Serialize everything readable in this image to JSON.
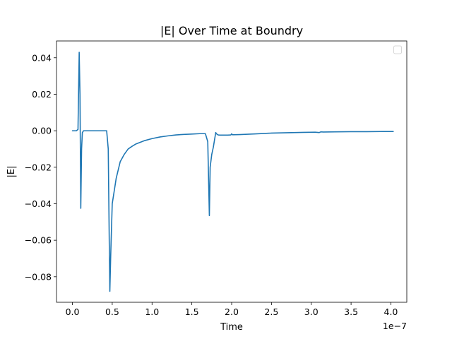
{
  "chart_data": {
    "type": "line",
    "title": "|E| Over Time at Boundry",
    "xlabel": "Time",
    "ylabel": "|E|",
    "x_offset_text": "1e−7",
    "x_scale_factor": 1e-07,
    "xlim": [
      -0.2,
      4.2
    ],
    "ylim": [
      -0.094,
      0.0492
    ],
    "grid": false,
    "legend": {
      "placement": "top-right",
      "entries": []
    },
    "x_ticks": [
      {
        "value": 0.0,
        "label": "0.0"
      },
      {
        "value": 0.5,
        "label": "0.5"
      },
      {
        "value": 1.0,
        "label": "1.0"
      },
      {
        "value": 1.5,
        "label": "1.5"
      },
      {
        "value": 2.0,
        "label": "2.0"
      },
      {
        "value": 2.5,
        "label": "2.5"
      },
      {
        "value": 3.0,
        "label": "3.0"
      },
      {
        "value": 3.5,
        "label": "3.5"
      },
      {
        "value": 4.0,
        "label": "4.0"
      }
    ],
    "y_ticks": [
      {
        "value": 0.04,
        "label": "0.04"
      },
      {
        "value": 0.02,
        "label": "0.02"
      },
      {
        "value": 0.0,
        "label": "0.00"
      },
      {
        "value": -0.02,
        "label": "−0.02"
      },
      {
        "value": -0.04,
        "label": "−0.04"
      },
      {
        "value": -0.06,
        "label": "−0.06"
      },
      {
        "value": -0.08,
        "label": "−0.08"
      }
    ],
    "series": [
      {
        "color": "#1f77b4",
        "x": [
          0.0,
          0.05,
          0.07,
          0.085,
          0.095,
          0.105,
          0.115,
          0.125,
          0.14,
          0.16,
          0.2,
          0.3,
          0.4,
          0.43,
          0.45,
          0.46,
          0.47,
          0.48,
          0.5,
          0.55,
          0.6,
          0.65,
          0.7,
          0.75,
          0.8,
          0.9,
          1.0,
          1.1,
          1.2,
          1.3,
          1.4,
          1.5,
          1.6,
          1.67,
          1.7,
          1.72,
          1.73,
          1.75,
          1.77,
          1.8,
          1.81,
          1.83,
          1.85,
          1.9,
          1.95,
          1.99,
          2.0,
          2.01,
          2.1,
          2.3,
          2.5,
          2.7,
          2.9,
          3.05,
          3.1,
          3.12,
          3.15,
          3.3,
          3.5,
          3.7,
          3.9,
          4.03
        ],
        "y": [
          0.0,
          0.0,
          0.0007,
          0.043,
          0.02,
          -0.0425,
          -0.01,
          -0.001,
          0.0,
          0.0,
          0.0,
          0.0,
          0.0,
          0.0,
          -0.01,
          -0.05,
          -0.088,
          -0.07,
          -0.04,
          -0.026,
          -0.017,
          -0.013,
          -0.01,
          -0.0085,
          -0.0072,
          -0.0055,
          -0.0043,
          -0.0034,
          -0.0028,
          -0.0023,
          -0.002,
          -0.0018,
          -0.0016,
          -0.0016,
          -0.006,
          -0.0465,
          -0.02,
          -0.013,
          -0.009,
          -0.001,
          -0.0017,
          -0.0023,
          -0.0024,
          -0.0024,
          -0.0024,
          -0.0023,
          -0.0017,
          -0.0022,
          -0.0021,
          -0.0017,
          -0.0013,
          -0.0011,
          -0.0009,
          -0.0008,
          -0.001,
          -0.0006,
          -0.0007,
          -0.0006,
          -0.0005,
          -0.0005,
          -0.0004,
          -0.0004
        ]
      }
    ]
  }
}
